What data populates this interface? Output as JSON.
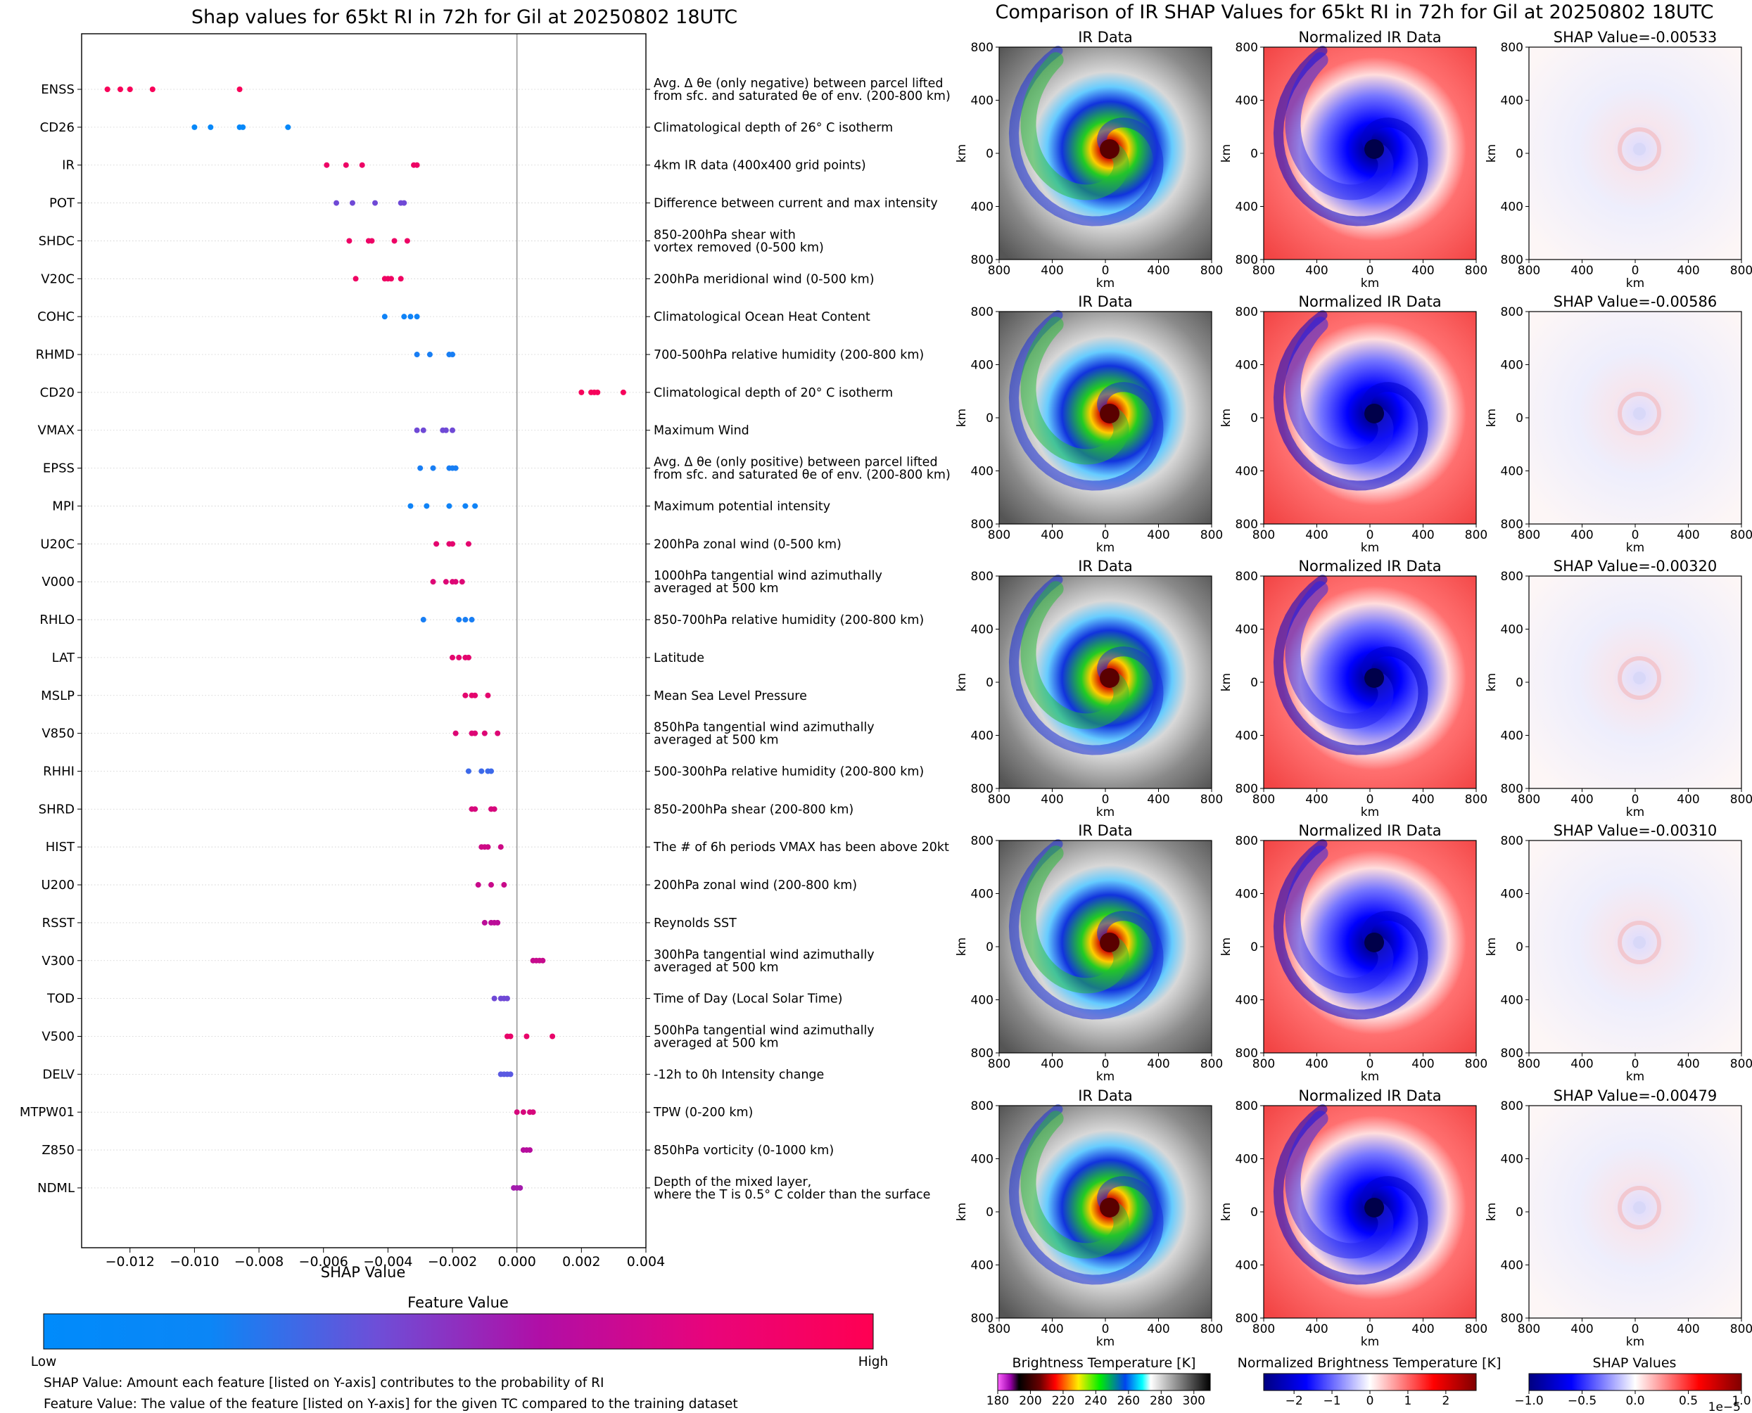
{
  "chart_data": [
    {
      "type": "scatter",
      "title": "Shap values for 65kt RI in 72h for Gil at 20250802 18UTC",
      "xlabel": "SHAP Value",
      "xlim": [
        -0.0135,
        0.004
      ],
      "x_ticks": [
        -0.012,
        -0.01,
        -0.008,
        -0.006,
        -0.004,
        -0.002,
        0.0,
        0.002,
        0.004
      ],
      "x_tick_labels": [
        "−0.012",
        "−0.010",
        "−0.008",
        "−0.006",
        "−0.004",
        "−0.002",
        "0.000",
        "0.002",
        "0.004"
      ],
      "features": [
        {
          "name": "ENSS",
          "desc": [
            "Avg. Δ θe (only negative) between parcel lifted",
            "from sfc. and saturated θe of env. (200-800 km)"
          ],
          "fv": 0.97,
          "points": [
            -0.0127,
            -0.0123,
            -0.012,
            -0.0113,
            -0.0086
          ]
        },
        {
          "name": "CD26",
          "desc": [
            "Climatological depth of 26° C isotherm"
          ],
          "fv": 0.02,
          "points": [
            -0.01,
            -0.0095,
            -0.0086,
            -0.0085,
            -0.0071
          ]
        },
        {
          "name": "IR",
          "desc": [
            "4km IR data (400x400 grid points)"
          ],
          "fv": 0.92,
          "points": [
            -0.0059,
            -0.0053,
            -0.0048,
            -0.0032,
            -0.0031
          ]
        },
        {
          "name": "POT",
          "desc": [
            "Difference between current and max intensity"
          ],
          "fv": 0.38,
          "points": [
            -0.0056,
            -0.0051,
            -0.0044,
            -0.0036,
            -0.0035
          ]
        },
        {
          "name": "SHDC",
          "desc": [
            "850-200hPa shear with",
            "vortex removed (0-500 km)"
          ],
          "fv": 0.92,
          "points": [
            -0.0052,
            -0.0046,
            -0.0045,
            -0.0038,
            -0.0034
          ]
        },
        {
          "name": "V20C",
          "desc": [
            "200hPa meridional wind (0-500 km)"
          ],
          "fv": 0.93,
          "points": [
            -0.005,
            -0.0041,
            -0.004,
            -0.0039,
            -0.0036
          ]
        },
        {
          "name": "COHC",
          "desc": [
            "Climatological Ocean Heat Content"
          ],
          "fv": 0.05,
          "points": [
            -0.0041,
            -0.0035,
            -0.0033,
            -0.0031
          ]
        },
        {
          "name": "RHMD",
          "desc": [
            "700-500hPa relative humidity (200-800 km)"
          ],
          "fv": 0.08,
          "points": [
            -0.0031,
            -0.0027,
            -0.0021,
            -0.002
          ]
        },
        {
          "name": "CD20",
          "desc": [
            "Climatological depth of 20° C isotherm"
          ],
          "fv": 0.96,
          "points": [
            0.002,
            0.0023,
            0.0024,
            0.0025,
            0.0033
          ]
        },
        {
          "name": "VMAX",
          "desc": [
            "Maximum Wind"
          ],
          "fv": 0.38,
          "points": [
            -0.0031,
            -0.0029,
            -0.0023,
            -0.0022,
            -0.002
          ]
        },
        {
          "name": "EPSS",
          "desc": [
            "Avg. Δ θe (only positive) between parcel lifted",
            "from sfc. and saturated θe of env. (200-800 km)"
          ],
          "fv": 0.08,
          "points": [
            -0.003,
            -0.0026,
            -0.0021,
            -0.002,
            -0.0019
          ]
        },
        {
          "name": "MPI",
          "desc": [
            "Maximum potential intensity"
          ],
          "fv": 0.05,
          "points": [
            -0.0033,
            -0.0028,
            -0.0021,
            -0.0016,
            -0.0013
          ]
        },
        {
          "name": "U20C",
          "desc": [
            "200hPa zonal wind (0-500 km)"
          ],
          "fv": 0.88,
          "points": [
            -0.0025,
            -0.0021,
            -0.002,
            -0.0015
          ]
        },
        {
          "name": "V000",
          "desc": [
            "1000hPa tangential wind azimuthally",
            "averaged at 500 km"
          ],
          "fv": 0.85,
          "points": [
            -0.0026,
            -0.0022,
            -0.002,
            -0.0019,
            -0.0017
          ]
        },
        {
          "name": "RHLO",
          "desc": [
            "850-700hPa relative humidity (200-800 km)"
          ],
          "fv": 0.08,
          "points": [
            -0.0029,
            -0.0018,
            -0.0016,
            -0.0014
          ]
        },
        {
          "name": "LAT",
          "desc": [
            "Latitude"
          ],
          "fv": 0.88,
          "points": [
            -0.002,
            -0.0018,
            -0.0016,
            -0.0015
          ]
        },
        {
          "name": "MSLP",
          "desc": [
            "Mean Sea Level Pressure"
          ],
          "fv": 0.88,
          "points": [
            -0.0016,
            -0.0014,
            -0.0013,
            -0.0009
          ]
        },
        {
          "name": "V850",
          "desc": [
            "850hPa tangential wind azimuthally",
            "averaged at 500 km"
          ],
          "fv": 0.85,
          "points": [
            -0.0019,
            -0.0014,
            -0.0013,
            -0.001,
            -0.0006
          ]
        },
        {
          "name": "RHHI",
          "desc": [
            "500-300hPa relative humidity (200-800 km)"
          ],
          "fv": 0.2,
          "points": [
            -0.0015,
            -0.0011,
            -0.0009,
            -0.0008
          ]
        },
        {
          "name": "SHRD",
          "desc": [
            "850-200hPa shear (200-800 km)"
          ],
          "fv": 0.82,
          "points": [
            -0.0014,
            -0.0013,
            -0.0008,
            -0.0007
          ]
        },
        {
          "name": "HIST",
          "desc": [
            "The # of 6h periods VMAX has been above 20kt"
          ],
          "fv": 0.78,
          "points": [
            -0.0011,
            -0.001,
            -0.0009,
            -0.0005
          ]
        },
        {
          "name": "U200",
          "desc": [
            "200hPa zonal wind (200-800 km)"
          ],
          "fv": 0.76,
          "points": [
            -0.0012,
            -0.0008,
            -0.0004
          ]
        },
        {
          "name": "RSST",
          "desc": [
            "Reynolds SST"
          ],
          "fv": 0.7,
          "points": [
            -0.001,
            -0.0008,
            -0.0007,
            -0.0006
          ]
        },
        {
          "name": "V300",
          "desc": [
            "300hPa tangential wind azimuthally",
            "averaged at 500 km"
          ],
          "fv": 0.75,
          "points": [
            0.0005,
            0.0006,
            0.0007,
            0.0008
          ]
        },
        {
          "name": "TOD",
          "desc": [
            "Time of Day (Local Solar Time)"
          ],
          "fv": 0.38,
          "points": [
            -0.0007,
            -0.0005,
            -0.0004,
            -0.0003
          ]
        },
        {
          "name": "V500",
          "desc": [
            "500hPa tangential wind azimuthally",
            "averaged at 500 km"
          ],
          "fv": 0.9,
          "points": [
            -0.0003,
            -0.0002,
            0.0003,
            0.0011
          ]
        },
        {
          "name": "DELV",
          "desc": [
            "-12h to 0h Intensity change"
          ],
          "fv": 0.3,
          "points": [
            -0.0005,
            -0.0004,
            -0.0003,
            -0.0002
          ]
        },
        {
          "name": "MTPW01",
          "desc": [
            "TPW (0-200 km)"
          ],
          "fv": 0.82,
          "points": [
            0.0,
            0.0002,
            0.0004,
            0.0005
          ]
        },
        {
          "name": "Z850",
          "desc": [
            "850hPa vorticity (0-1000 km)"
          ],
          "fv": 0.68,
          "points": [
            0.0002,
            0.0003,
            0.0004
          ]
        },
        {
          "name": "NDML",
          "desc": [
            "Depth of the mixed layer,",
            "where the T is 0.5° C colder than the surface"
          ],
          "fv": 0.6,
          "points": [
            -0.0001,
            0.0,
            0.0001
          ]
        }
      ]
    },
    {
      "type": "heatmap",
      "title": "Comparison of IR SHAP Values for 65kt RI in 72h for Gil at 20250802 18UTC",
      "column_titles": [
        "IR Data",
        "Normalized IR Data"
      ],
      "shap_titles": [
        "SHAP Value=-0.00533",
        "SHAP Value=-0.00586",
        "SHAP Value=-0.00320",
        "SHAP Value=-0.00310",
        "SHAP Value=-0.00479"
      ],
      "axis_unit": "km",
      "axis_ticks": [
        "800",
        "400",
        "0",
        "400",
        "800"
      ],
      "colorbars": [
        {
          "label": "Brightness Temperature [K]",
          "ticks": [
            "180",
            "200",
            "220",
            "240",
            "260",
            "280",
            "300"
          ],
          "range": [
            180,
            310
          ]
        },
        {
          "label": "Normalized Brightness Temperature [K]",
          "ticks": [
            "−2",
            "−1",
            "0",
            "1",
            "2"
          ],
          "range": [
            -2.8,
            2.8
          ]
        },
        {
          "label": "SHAP Values",
          "ticks": [
            "−1.0",
            "−0.5",
            "0.0",
            "0.5",
            "1.0"
          ],
          "range": [
            -1.0,
            1.0
          ],
          "offset_text": "1e−5"
        }
      ]
    }
  ],
  "legend": {
    "title": "Feature Value",
    "low": "Low",
    "high": "High",
    "colors": [
      "#008bfb",
      "#6453df",
      "#b30ea0",
      "#ff0052"
    ]
  },
  "notes": [
    "SHAP Value: Amount each feature [listed on Y-axis] contributes to the probability of RI",
    "Feature Value: The value of the feature [listed on Y-axis] for the given TC compared to the training dataset"
  ]
}
